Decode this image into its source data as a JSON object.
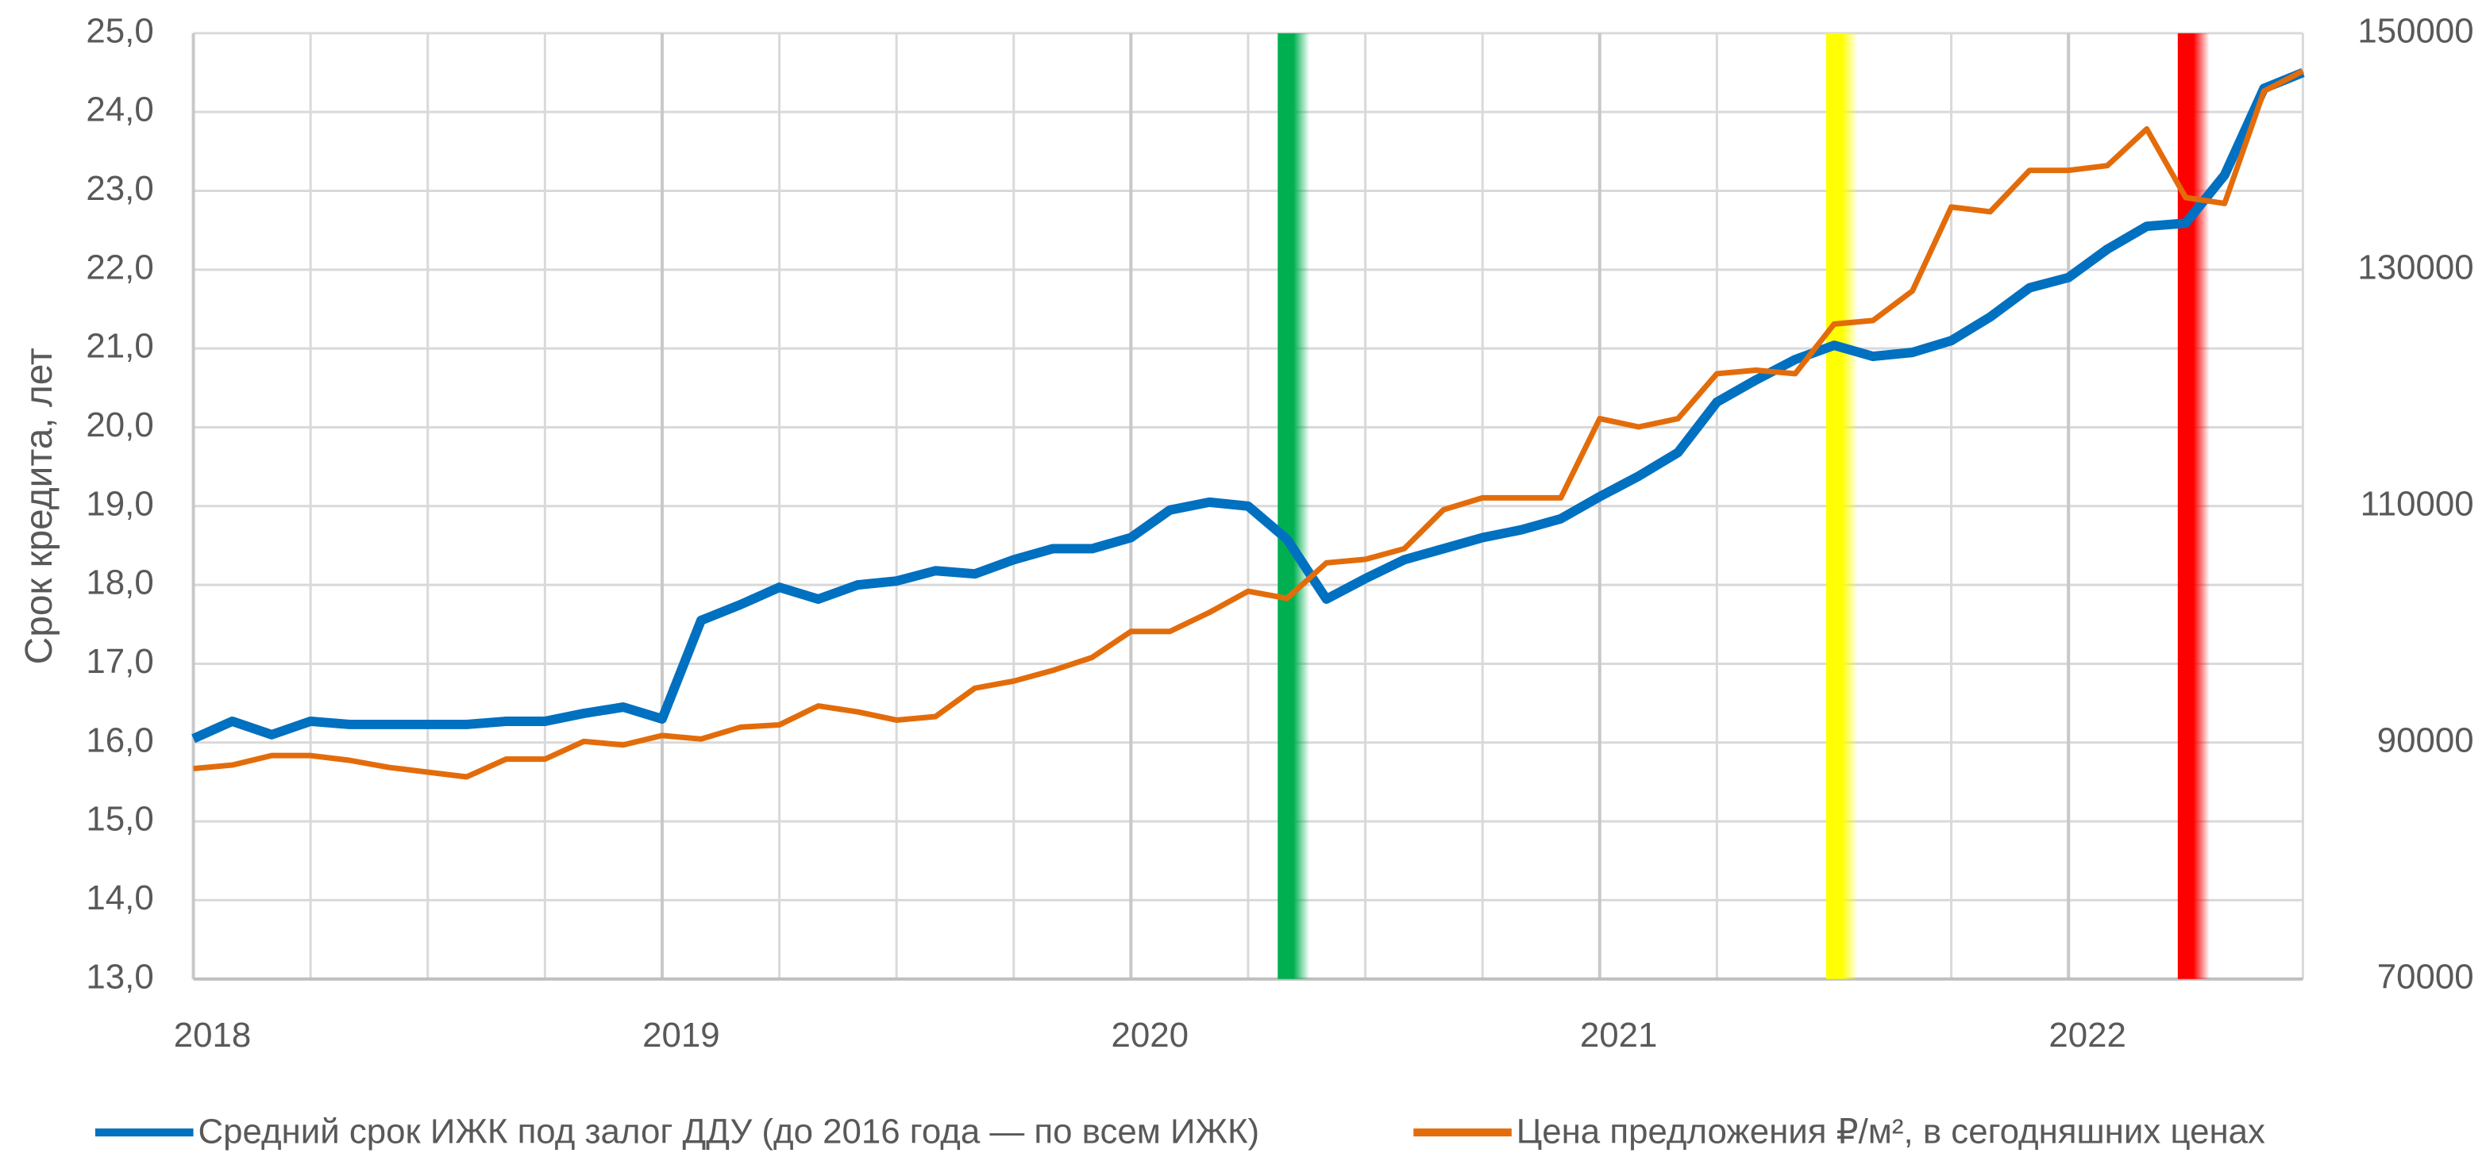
{
  "chart_data": {
    "type": "line",
    "ylabel": "Срок кредита, лет",
    "x": [
      2018,
      2018.083,
      2018.167,
      2018.25,
      2018.333,
      2018.417,
      2018.5,
      2018.583,
      2018.667,
      2018.75,
      2018.833,
      2018.917,
      2019,
      2019.083,
      2019.167,
      2019.25,
      2019.333,
      2019.417,
      2019.5,
      2019.583,
      2019.667,
      2019.75,
      2019.833,
      2019.917,
      2020,
      2020.083,
      2020.167,
      2020.25,
      2020.333,
      2020.417,
      2020.5,
      2020.583,
      2020.667,
      2020.75,
      2020.833,
      2020.917,
      2021,
      2021.083,
      2021.167,
      2021.25,
      2021.333,
      2021.417,
      2021.5,
      2021.583,
      2021.667,
      2021.75,
      2021.833,
      2021.917,
      2022,
      2022.083,
      2022.167,
      2022.25,
      2022.333,
      2022.417,
      2022.5
    ],
    "xlim": [
      2018,
      2022.5
    ],
    "xticks": [
      2018,
      2019,
      2020,
      2021,
      2022
    ],
    "ylim": [
      13,
      25
    ],
    "yticks": [
      {
        "value": 13,
        "label": "13,0"
      },
      {
        "value": 14,
        "label": "14,0"
      },
      {
        "value": 15,
        "label": "15,0"
      },
      {
        "value": 16,
        "label": "16,0"
      },
      {
        "value": 17,
        "label": "17,0"
      },
      {
        "value": 18,
        "label": "18,0"
      },
      {
        "value": 19,
        "label": "19,0"
      },
      {
        "value": 20,
        "label": "20,0"
      },
      {
        "value": 21,
        "label": "21,0"
      },
      {
        "value": 22,
        "label": "22,0"
      },
      {
        "value": 23,
        "label": "23,0"
      },
      {
        "value": 24,
        "label": "24,0"
      },
      {
        "value": 25,
        "label": "25,0"
      }
    ],
    "y2lim": [
      70000,
      150000
    ],
    "y2ticks": [
      70000,
      90000,
      110000,
      130000,
      150000
    ],
    "grid": true,
    "legend": "bottom",
    "bands": [
      {
        "x": 2020.33,
        "color": "#00b050"
      },
      {
        "x": 2021.5,
        "color": "#ffff00"
      },
      {
        "x": 2022.25,
        "color": "#ff0000"
      }
    ],
    "series": [
      {
        "name": "Средний срок ИЖК под залог ДДУ (до 2016 года — по всем ИЖК)",
        "color": "#0070c0",
        "width": 6,
        "values": [
          16.05,
          16.27,
          16.1,
          16.27,
          16.23,
          16.23,
          16.23,
          16.23,
          16.27,
          16.27,
          16.37,
          16.45,
          16.3,
          17.55,
          17.75,
          17.97,
          17.82,
          18.0,
          18.05,
          18.18,
          18.14,
          18.32,
          18.46,
          18.46,
          18.6,
          18.95,
          19.05,
          19.0,
          18.58,
          17.82,
          18.08,
          18.32,
          18.46,
          18.6,
          18.7,
          18.84,
          19.12,
          19.38,
          19.68,
          20.32,
          20.6,
          20.86,
          21.04,
          20.9,
          20.95,
          21.1,
          21.4,
          21.77,
          21.9,
          22.26,
          22.55,
          22.59,
          23.2,
          24.3,
          24.5
        ]
      },
      {
        "name": "Цена предложения ₽/м², в сегодняшних ценах",
        "color": "#e36c0a",
        "width": 3.5,
        "axis": "y2",
        "values": [
          87800,
          88100,
          88900,
          88900,
          88500,
          87900,
          87500,
          87100,
          88600,
          88600,
          90100,
          89800,
          90600,
          90300,
          91300,
          91500,
          93100,
          92600,
          91900,
          92200,
          94600,
          95200,
          96100,
          97200,
          99400,
          99400,
          101000,
          102800,
          102200,
          105200,
          105500,
          106400,
          109700,
          110700,
          110700,
          110700,
          117400,
          116700,
          117400,
          121200,
          121500,
          121200,
          125400,
          125700,
          128200,
          135300,
          134900,
          138400,
          138400,
          138800,
          141900,
          136100,
          135600,
          145100,
          146800
        ]
      }
    ]
  }
}
